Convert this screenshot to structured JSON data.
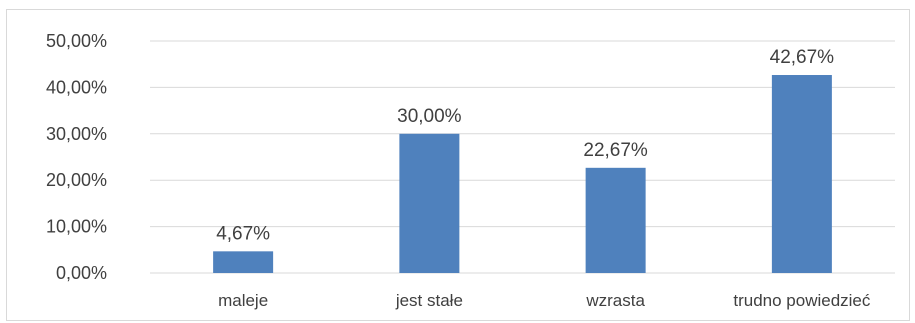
{
  "chart_data": {
    "type": "bar",
    "categories": [
      "maleje",
      "jest stałe",
      "wzrasta",
      "trudno powiedzieć"
    ],
    "values": [
      4.67,
      30.0,
      22.67,
      42.67
    ],
    "data_labels": [
      "4,67%",
      "30,00%",
      "22,67%",
      "42,67%"
    ],
    "y_ticks": [
      "0,00%",
      "10,00%",
      "20,00%",
      "30,00%",
      "40,00%",
      "50,00%"
    ],
    "ylim": [
      0,
      50
    ],
    "grid": true,
    "bar_color": "#4f81bd",
    "grid_color": "#d9d9d9"
  }
}
